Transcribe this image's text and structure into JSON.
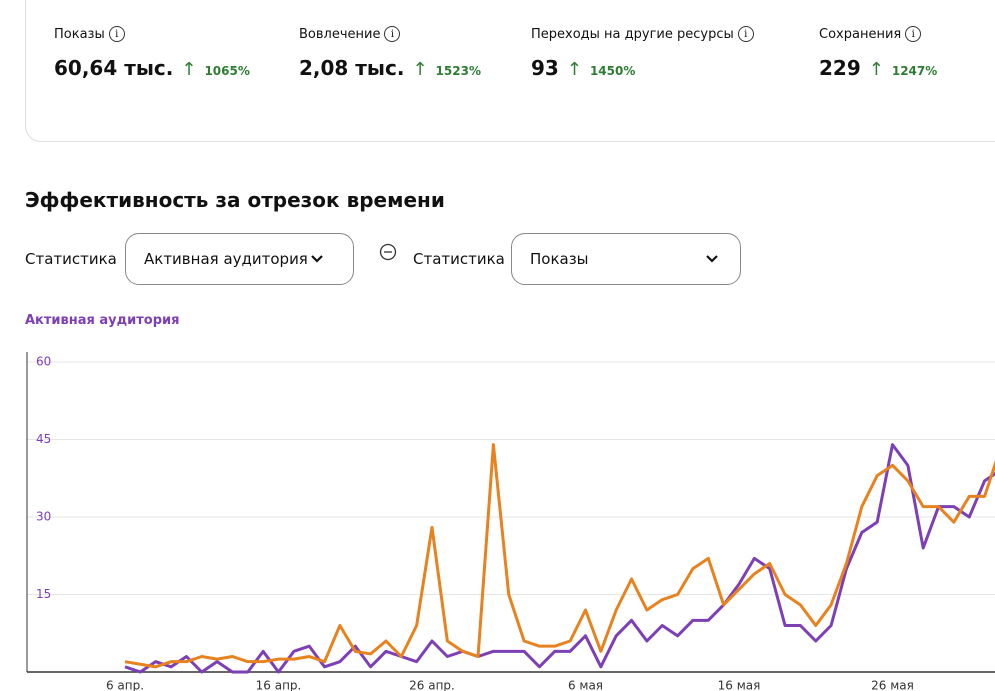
{
  "metrics": [
    {
      "label": "Показы",
      "value": "60,64 тыс.",
      "change": "1065%"
    },
    {
      "label": "Вовлечение",
      "value": "2,08 тыс.",
      "change": "1523%"
    },
    {
      "label": "Переходы на другие ресурсы",
      "value": "93",
      "change": "1450%"
    },
    {
      "label": "Сохранения",
      "value": "229",
      "change": "1247%"
    }
  ],
  "section_title": "Эффективность за отрезок времени",
  "controls": {
    "stat_label_1": "Статистика",
    "select_1": "Активная аудитория",
    "stat_label_2": "Статистика"
  },
  "chart_data": {
    "type": "line",
    "categories": [
      "6 апр.",
      null,
      null,
      null,
      null,
      null,
      null,
      null,
      null,
      null,
      "16 апр.",
      null,
      null,
      null,
      null,
      null,
      null,
      null,
      null,
      null,
      "26 апр.",
      null,
      null,
      null,
      null,
      null,
      null,
      null,
      null,
      null,
      "6 мая",
      null,
      null,
      null,
      null,
      null,
      null,
      null,
      null,
      null,
      "16 мая",
      null,
      null,
      null,
      null,
      null,
      null,
      null,
      null,
      null,
      "26 мая",
      null,
      null,
      null,
      null,
      null,
      null,
      null
    ],
    "series": [
      {
        "name": "Активная аудитория",
        "color": "#7d3fb5",
        "values": [
          1,
          0,
          2,
          1,
          3,
          0,
          2,
          0,
          0,
          4,
          0,
          4,
          5,
          1,
          2,
          5,
          1,
          4,
          3,
          2,
          6,
          3,
          4,
          3,
          4,
          4,
          4,
          1,
          4,
          4,
          7,
          1,
          7,
          10,
          6,
          9,
          7,
          10,
          10,
          13,
          17,
          22,
          20,
          9,
          9,
          6,
          9,
          20,
          27,
          29,
          44,
          40,
          24,
          32,
          32,
          30,
          37,
          39
        ]
      },
      {
        "name": "Показы",
        "color": "#e8821e",
        "values": [
          2,
          1.5,
          1,
          2,
          2,
          3,
          2.5,
          3,
          2,
          2,
          2.5,
          2.5,
          3,
          2,
          9,
          4,
          3.5,
          6,
          3,
          9,
          28,
          6,
          4,
          3,
          44,
          15,
          6,
          5,
          5,
          6,
          12,
          4,
          12,
          18,
          12,
          14,
          15,
          20,
          22,
          13,
          16,
          19,
          21,
          15,
          13,
          9,
          13,
          21,
          32,
          38,
          40,
          37,
          32,
          32,
          29,
          34,
          34,
          43
        ]
      }
    ],
    "ylim": [
      0,
      60
    ],
    "yticks": [
      15,
      30,
      45,
      60
    ],
    "grid": true
  }
}
